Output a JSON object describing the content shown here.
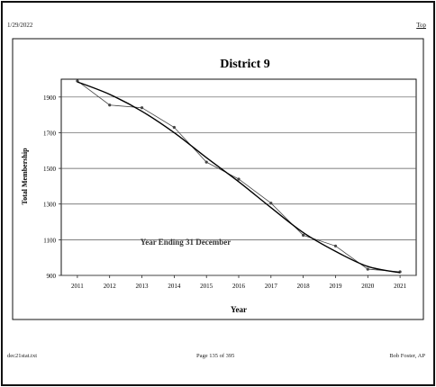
{
  "header": {
    "date": "1/29/2022",
    "top_link": "Top"
  },
  "footer": {
    "file": "dec21stat.txt",
    "page": "Page 135 of 395",
    "author": "Bob Foster, AP"
  },
  "chart_data": {
    "type": "line",
    "title": "District 9",
    "xlabel": "Year",
    "ylabel": "Total Membership",
    "annotation": "Year Ending 31 December",
    "x": [
      2011,
      2012,
      2013,
      2014,
      2015,
      2016,
      2017,
      2018,
      2019,
      2020,
      2021
    ],
    "xlim": [
      2010.5,
      2021.5
    ],
    "ylim": [
      900,
      2000
    ],
    "yticks": [
      900,
      1100,
      1300,
      1500,
      1700,
      1900
    ],
    "grid": true,
    "series": [
      {
        "values": [
          1990,
          1855,
          1840,
          1730,
          1535,
          1440,
          1305,
          1125,
          1065,
          935,
          920
        ]
      },
      {
        "values": [
          1985,
          1915,
          1820,
          1700,
          1560,
          1425,
          1280,
          1140,
          1035,
          950,
          915
        ]
      }
    ],
    "colors": {
      "actual": "#444444",
      "trend": "#000000",
      "grid": "#555555"
    }
  }
}
